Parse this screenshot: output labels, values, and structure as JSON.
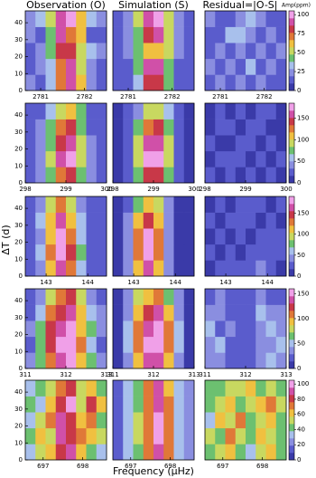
{
  "figure": {
    "column_titles": [
      "Observation (O)",
      "Simulation (S)",
      "Residual=|O-S|"
    ],
    "colorbar_label": "Amp(ppm)",
    "ylabel": "ΔT (d)",
    "xlabel": "Frequency (μHz)",
    "colormap": [
      "#3a3aa8",
      "#5a5ccc",
      "#8a8ee0",
      "#a8c0ec",
      "#6cc070",
      "#c8d860",
      "#f0c040",
      "#e07838",
      "#c83848",
      "#d050a8",
      "#f0a0e8"
    ]
  },
  "chart_data": [
    {
      "type": "heatmap",
      "xlim": [
        2780.65,
        2782.5
      ],
      "ylim": [
        0,
        47
      ],
      "xticks": [
        2781,
        2782
      ],
      "yticks": [
        0,
        10,
        20,
        30,
        40
      ],
      "clim": [
        0,
        105
      ],
      "z": [
        [
          20,
          15,
          30,
          70,
          90,
          60,
          25,
          15
        ],
        [
          15,
          25,
          35,
          75,
          95,
          55,
          20,
          10
        ],
        [
          10,
          20,
          40,
          80,
          85,
          50,
          30,
          20
        ],
        [
          25,
          15,
          45,
          95,
          70,
          60,
          15,
          10
        ],
        [
          20,
          30,
          50,
          90,
          100,
          65,
          30,
          20
        ]
      ]
    },
    {
      "type": "heatmap",
      "xlim": [
        2780.65,
        2782.5
      ],
      "ylim": [
        0,
        47
      ],
      "xticks": [
        2781,
        2782
      ],
      "clim": [
        0,
        105
      ],
      "z": [
        [
          10,
          15,
          35,
          80,
          85,
          40,
          15,
          10
        ],
        [
          10,
          15,
          40,
          90,
          95,
          45,
          15,
          10
        ],
        [
          10,
          20,
          45,
          60,
          65,
          50,
          20,
          10
        ],
        [
          10,
          20,
          45,
          85,
          90,
          50,
          20,
          10
        ],
        [
          10,
          20,
          50,
          95,
          100,
          55,
          20,
          10
        ]
      ]
    },
    {
      "type": "heatmap",
      "xlim": [
        2780.65,
        2782.5
      ],
      "ylim": [
        0,
        47
      ],
      "xticks": [
        2781,
        2782
      ],
      "clim": [
        0,
        105
      ],
      "cticks": [
        0,
        25,
        50,
        75,
        100
      ],
      "z": [
        [
          10,
          20,
          15,
          25,
          15,
          20,
          10,
          15
        ],
        [
          20,
          10,
          25,
          15,
          30,
          10,
          20,
          10
        ],
        [
          15,
          25,
          10,
          20,
          15,
          25,
          15,
          20
        ],
        [
          10,
          15,
          30,
          35,
          20,
          15,
          25,
          10
        ],
        [
          20,
          10,
          15,
          25,
          30,
          20,
          10,
          15
        ]
      ]
    },
    {
      "type": "heatmap",
      "xlim": [
        298,
        300
      ],
      "ylim": [
        0,
        47
      ],
      "xticks": [
        298,
        299,
        300
      ],
      "yticks": [
        0,
        10,
        20,
        30,
        40
      ],
      "clim": [
        0,
        185
      ],
      "z": [
        [
          20,
          40,
          70,
          130,
          140,
          80,
          40,
          20
        ],
        [
          30,
          50,
          90,
          160,
          170,
          100,
          50,
          30
        ],
        [
          20,
          40,
          80,
          150,
          160,
          90,
          40,
          20
        ],
        [
          30,
          50,
          70,
          130,
          140,
          80,
          30,
          20
        ],
        [
          20,
          30,
          60,
          100,
          110,
          70,
          30,
          20
        ]
      ]
    },
    {
      "type": "heatmap",
      "xlim": [
        298,
        300
      ],
      "ylim": [
        0,
        47
      ],
      "xticks": [
        298,
        299,
        300
      ],
      "clim": [
        0,
        185
      ],
      "z": [
        [
          10,
          25,
          70,
          140,
          150,
          75,
          25,
          10
        ],
        [
          10,
          30,
          90,
          170,
          175,
          95,
          30,
          10
        ],
        [
          10,
          30,
          85,
          160,
          165,
          90,
          30,
          10
        ],
        [
          10,
          25,
          70,
          130,
          135,
          75,
          25,
          10
        ],
        [
          10,
          20,
          50,
          90,
          95,
          55,
          20,
          10
        ]
      ]
    },
    {
      "type": "heatmap",
      "xlim": [
        298,
        300
      ],
      "ylim": [
        0,
        47
      ],
      "xticks": [
        298,
        299,
        300
      ],
      "clim": [
        0,
        185
      ],
      "cticks": [
        0,
        50,
        100,
        150
      ],
      "z": [
        [
          20,
          15,
          25,
          10,
          20,
          15,
          20,
          10
        ],
        [
          15,
          30,
          20,
          25,
          15,
          30,
          10,
          20
        ],
        [
          25,
          10,
          15,
          30,
          20,
          10,
          25,
          15
        ],
        [
          10,
          20,
          30,
          15,
          25,
          20,
          15,
          10
        ],
        [
          15,
          25,
          10,
          20,
          15,
          25,
          20,
          15
        ]
      ]
    },
    {
      "type": "heatmap",
      "xlim": [
        142.5,
        144.45
      ],
      "ylim": [
        0,
        47
      ],
      "xticks": [
        143,
        144
      ],
      "yticks": [
        0,
        10,
        20,
        30,
        40
      ],
      "clim": [
        0,
        190
      ],
      "z": [
        [
          20,
          50,
          110,
          170,
          130,
          60,
          20,
          30
        ],
        [
          30,
          60,
          130,
          180,
          140,
          70,
          30,
          20
        ],
        [
          20,
          50,
          120,
          175,
          135,
          60,
          25,
          20
        ],
        [
          30,
          60,
          110,
          160,
          120,
          55,
          30,
          25
        ],
        [
          20,
          40,
          90,
          130,
          100,
          50,
          20,
          20
        ]
      ]
    },
    {
      "type": "heatmap",
      "xlim": [
        142.5,
        144.45
      ],
      "ylim": [
        0,
        47
      ],
      "xticks": [
        143,
        144
      ],
      "clim": [
        0,
        190
      ],
      "z": [
        [
          10,
          40,
          110,
          165,
          120,
          45,
          15,
          10
        ],
        [
          10,
          45,
          130,
          180,
          135,
          50,
          15,
          10
        ],
        [
          10,
          45,
          125,
          175,
          130,
          50,
          15,
          10
        ],
        [
          10,
          40,
          110,
          155,
          115,
          45,
          15,
          10
        ],
        [
          10,
          30,
          85,
          120,
          90,
          35,
          10,
          10
        ]
      ]
    },
    {
      "type": "heatmap",
      "xlim": [
        142.5,
        144.45
      ],
      "ylim": [
        0,
        47
      ],
      "xticks": [
        143,
        144
      ],
      "clim": [
        0,
        190
      ],
      "cticks": [
        0,
        50,
        100,
        150
      ],
      "z": [
        [
          15,
          25,
          20,
          30,
          20,
          35,
          25,
          15
        ],
        [
          20,
          15,
          25,
          15,
          25,
          20,
          30,
          20
        ],
        [
          10,
          30,
          15,
          25,
          15,
          30,
          20,
          25
        ],
        [
          25,
          15,
          30,
          20,
          30,
          15,
          25,
          15
        ],
        [
          15,
          20,
          15,
          25,
          20,
          25,
          15,
          20
        ]
      ]
    },
    {
      "type": "heatmap",
      "xlim": [
        311,
        313
      ],
      "ylim": [
        0,
        47
      ],
      "xticks": [
        311,
        312,
        313
      ],
      "yticks": [
        0,
        10,
        20,
        30,
        40
      ],
      "clim": [
        0,
        160
      ],
      "z": [
        [
          30,
          60,
          110,
          140,
          150,
          100,
          60,
          30
        ],
        [
          20,
          70,
          130,
          150,
          155,
          110,
          50,
          20
        ],
        [
          30,
          60,
          120,
          145,
          150,
          100,
          60,
          40
        ],
        [
          20,
          50,
          110,
          130,
          140,
          90,
          50,
          30
        ],
        [
          20,
          40,
          80,
          110,
          120,
          80,
          40,
          20
        ]
      ]
    },
    {
      "type": "heatmap",
      "xlim": [
        311,
        313
      ],
      "ylim": [
        0,
        47
      ],
      "xticks": [
        311,
        312,
        313
      ],
      "clim": [
        0,
        160
      ],
      "z": [
        [
          10,
          40,
          100,
          140,
          145,
          100,
          40,
          10
        ],
        [
          10,
          45,
          115,
          150,
          155,
          110,
          45,
          10
        ],
        [
          10,
          45,
          110,
          145,
          150,
          105,
          45,
          10
        ],
        [
          10,
          40,
          100,
          130,
          135,
          95,
          40,
          10
        ],
        [
          10,
          30,
          75,
          100,
          105,
          70,
          30,
          10
        ]
      ]
    },
    {
      "type": "heatmap",
      "xlim": [
        311,
        313
      ],
      "ylim": [
        0,
        47
      ],
      "xticks": [
        311,
        312,
        313
      ],
      "clim": [
        0,
        160
      ],
      "cticks": [
        0,
        50,
        100,
        150
      ],
      "z": [
        [
          40,
          30,
          20,
          15,
          25,
          35,
          45,
          30
        ],
        [
          30,
          45,
          25,
          20,
          15,
          40,
          30,
          50
        ],
        [
          50,
          25,
          35,
          15,
          20,
          30,
          55,
          35
        ],
        [
          35,
          40,
          20,
          25,
          15,
          45,
          30,
          40
        ],
        [
          25,
          30,
          15,
          20,
          25,
          30,
          25,
          20
        ]
      ]
    },
    {
      "type": "heatmap",
      "xlim": [
        696.55,
        698.6
      ],
      "ylim": [
        0,
        47
      ],
      "xticks": [
        697,
        698
      ],
      "yticks": [
        0,
        10,
        20,
        30,
        40
      ],
      "clim": [
        0,
        105
      ],
      "z": [
        [
          30,
          50,
          60,
          80,
          90,
          60,
          40,
          30
        ],
        [
          40,
          60,
          50,
          90,
          85,
          70,
          60,
          50
        ],
        [
          30,
          50,
          70,
          95,
          80,
          60,
          70,
          40
        ],
        [
          40,
          30,
          60,
          85,
          100,
          55,
          80,
          60
        ],
        [
          30,
          40,
          50,
          70,
          85,
          50,
          60,
          40
        ]
      ]
    },
    {
      "type": "heatmap",
      "xlim": [
        696.55,
        698.6
      ],
      "ylim": [
        0,
        47
      ],
      "xticks": [
        697,
        698
      ],
      "clim": [
        0,
        105
      ],
      "z": [
        [
          15,
          30,
          45,
          70,
          95,
          70,
          30,
          20
        ],
        [
          15,
          35,
          50,
          75,
          100,
          75,
          35,
          20
        ],
        [
          15,
          35,
          50,
          75,
          100,
          75,
          35,
          20
        ],
        [
          15,
          30,
          45,
          70,
          95,
          70,
          30,
          20
        ],
        [
          15,
          30,
          45,
          70,
          90,
          65,
          30,
          20
        ]
      ]
    },
    {
      "type": "heatmap",
      "xlim": [
        696.55,
        698.6
      ],
      "ylim": [
        0,
        47
      ],
      "xticks": [
        697,
        698
      ],
      "clim": [
        0,
        105
      ],
      "cticks": [
        0,
        20,
        40,
        60,
        80,
        100
      ],
      "z": [
        [
          40,
          50,
          60,
          45,
          30,
          50,
          60,
          40
        ],
        [
          50,
          40,
          70,
          55,
          40,
          60,
          50,
          45
        ],
        [
          35,
          60,
          55,
          70,
          45,
          50,
          65,
          40
        ],
        [
          45,
          50,
          60,
          40,
          55,
          65,
          70,
          50
        ],
        [
          40,
          45,
          50,
          55,
          60,
          45,
          55,
          40
        ]
      ]
    }
  ]
}
